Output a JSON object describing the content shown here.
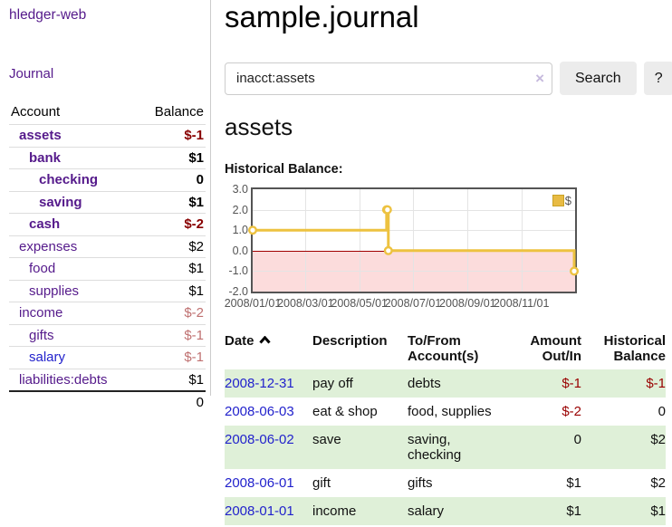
{
  "app": {
    "brand": "hledger-web",
    "nav_journal": "Journal"
  },
  "sidebar": {
    "account_table": {
      "col_account": "Account",
      "col_balance": "Balance",
      "accounts": [
        {
          "name": "assets",
          "balance": "$-1"
        },
        {
          "name": "bank",
          "balance": "$1"
        },
        {
          "name": "checking",
          "balance": "0"
        },
        {
          "name": "saving",
          "balance": "$1"
        },
        {
          "name": "cash",
          "balance": "$-2"
        },
        {
          "name": "expenses",
          "balance": "$2"
        },
        {
          "name": "food",
          "balance": "$1"
        },
        {
          "name": "supplies",
          "balance": "$1"
        },
        {
          "name": "income",
          "balance": "$-2"
        },
        {
          "name": "gifts",
          "balance": "$-1"
        },
        {
          "name": "salary",
          "balance": "$-1"
        },
        {
          "name": "liabilities:debts",
          "balance": "$1"
        }
      ],
      "total": "0"
    }
  },
  "main": {
    "title": "sample.journal",
    "search": {
      "value": "inacct:assets",
      "clear": "×",
      "button": "Search",
      "help": "?"
    },
    "account_heading": "assets",
    "chart_label": "Historical Balance:",
    "register": {
      "headers": {
        "date": "Date",
        "description": "Description",
        "accounts": "To/From\nAccount(s)",
        "amount": "Amount\nOut/In",
        "balance": "Historical\nBalance"
      },
      "rows": [
        {
          "date": "2008-12-31",
          "description": "pay off",
          "accounts": "debts",
          "amount": "$-1",
          "balance": "$-1"
        },
        {
          "date": "2008-06-03",
          "description": "eat & shop",
          "accounts": "food, supplies",
          "amount": "$-2",
          "balance": "0"
        },
        {
          "date": "2008-06-02",
          "description": "save",
          "accounts": "saving,\nchecking",
          "amount": "0",
          "balance": "$2"
        },
        {
          "date": "2008-06-01",
          "description": "gift",
          "accounts": "gifts",
          "amount": "$1",
          "balance": "$2"
        },
        {
          "date": "2008-01-01",
          "description": "income",
          "accounts": "salary",
          "amount": "$1",
          "balance": "$1"
        }
      ]
    }
  },
  "chart_data": {
    "type": "line",
    "step": true,
    "title": "Historical Balance",
    "series": [
      {
        "name": "$",
        "color": "#edc240",
        "points": [
          [
            "2008-01-01",
            1
          ],
          [
            "2008-06-01",
            2
          ],
          [
            "2008-06-02",
            2
          ],
          [
            "2008-06-03",
            0
          ],
          [
            "2008-12-31",
            -1
          ]
        ]
      }
    ],
    "y_ticks": [
      "3.0",
      "2.0",
      "1.0",
      "0.0",
      "-1.0",
      "-2.0"
    ],
    "x_ticks": [
      "2008/01/01",
      "2008/03/01",
      "2008/05/01",
      "2008/07/01",
      "2008/09/01",
      "2008/11/01"
    ],
    "ylim": [
      -2,
      3
    ],
    "xlim": [
      "2008-01-01",
      "2009-01-01"
    ],
    "grid": true,
    "legend": "$",
    "legend_position": "top-right",
    "zero_line_color": "#a00000",
    "negative_region_color": "#fcdcdc"
  }
}
